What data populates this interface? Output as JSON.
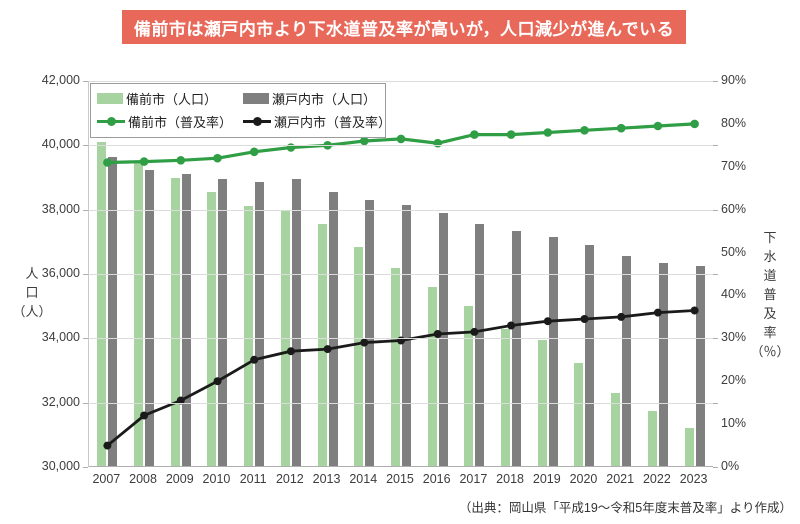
{
  "banner": {
    "text": "備前市は瀬戸内市より下水道普及率が高いが，人口減少が進んでいる",
    "bg_color": "#e8695a",
    "text_color": "#ffffff"
  },
  "source_note": "（出典：岡山県「平成19～令和5年度末普及率」より作成）",
  "chart_data": {
    "type": "bar",
    "subtype": "bar-line-combo",
    "grid": true,
    "legend_position": "top-left",
    "categories": [
      "2007",
      "2008",
      "2009",
      "2010",
      "2011",
      "2012",
      "2013",
      "2014",
      "2015",
      "2016",
      "2017",
      "2018",
      "2019",
      "2020",
      "2021",
      "2022",
      "2023"
    ],
    "series": [
      {
        "key": "bizen-population",
        "name": "備前市（人口）",
        "type": "bar",
        "axis": "left",
        "color": "#a6d39f",
        "values": [
          40100,
          39500,
          39000,
          38550,
          38100,
          38000,
          37550,
          36850,
          36200,
          35600,
          35000,
          34300,
          33950,
          33250,
          32300,
          31750,
          31200
        ]
      },
      {
        "key": "setouchi-population",
        "name": "瀬戸内市（人口）",
        "type": "bar",
        "axis": "left",
        "color": "#7f7f7f",
        "values": [
          39650,
          39250,
          39100,
          38950,
          38850,
          38950,
          38550,
          38300,
          38150,
          37900,
          37550,
          37350,
          37150,
          36900,
          36550,
          36350,
          36250
        ]
      },
      {
        "key": "bizen-rate",
        "name": "備前市（普及率）",
        "type": "line",
        "axis": "right",
        "color": "#2f9e44",
        "values": [
          71,
          71.2,
          71.5,
          72,
          73.5,
          74.5,
          75,
          76,
          76.5,
          75.5,
          77.5,
          77.5,
          78,
          78.5,
          79,
          79.5,
          80
        ]
      },
      {
        "key": "setouchi-rate",
        "name": "瀬戸内市（普及率）",
        "type": "line",
        "axis": "right",
        "color": "#1a1a1a",
        "values": [
          5,
          12,
          15.5,
          20,
          25,
          27,
          27.5,
          29,
          29.5,
          31,
          31.5,
          33,
          34,
          34.5,
          35,
          36,
          36.5
        ]
      }
    ],
    "left_axis": {
      "title": "人口（人）",
      "title_lines": [
        "人",
        "口",
        "（人）"
      ],
      "min": 30000,
      "max": 42000,
      "tick_labels": [
        "42,000",
        "40,000",
        "38,000",
        "36,000",
        "34,000",
        "32,000",
        "30,000"
      ]
    },
    "right_axis": {
      "title": "下水道普及率（％）",
      "title_lines": [
        "下",
        "水",
        "道",
        "普",
        "及",
        "率",
        "（％）"
      ],
      "min": 0,
      "max": 90,
      "tick_labels": [
        "90%",
        "80%",
        "70%",
        "60%",
        "50%",
        "40%",
        "30%",
        "20%",
        "10%",
        "0%"
      ]
    }
  }
}
